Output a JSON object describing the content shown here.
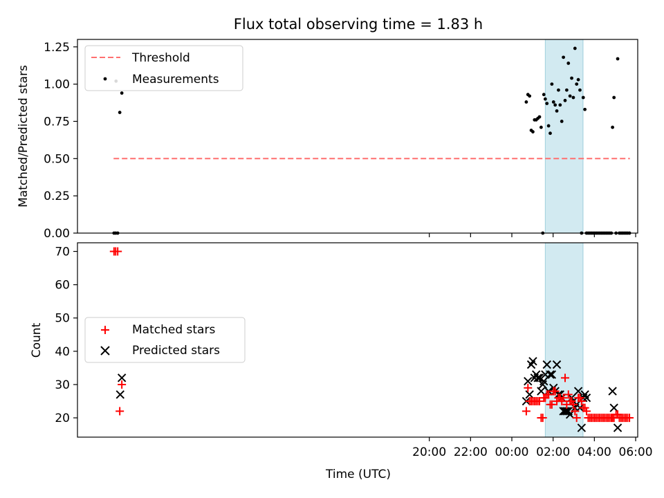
{
  "chart_data": {
    "title": "Flux total observing time = 1.83 h",
    "xlabel": "Time (UTC)",
    "x_unit": "hours_utc_relative_to_00:00",
    "xlim": [
      -21.05,
      6.1
    ],
    "xticks": [
      {
        "value": -4,
        "label": "20:00"
      },
      {
        "value": -2,
        "label": "22:00"
      },
      {
        "value": 0,
        "label": "00:00"
      },
      {
        "value": 2,
        "label": "02:00"
      },
      {
        "value": 4,
        "label": "04:00"
      },
      {
        "value": 6,
        "label": "06:00"
      }
    ],
    "shaded_interval": {
      "x0": 1.62,
      "x1": 3.45,
      "color": "#add8e6"
    },
    "colors": {
      "threshold": "#ff6f6f",
      "measurements": "#000000",
      "matched": "#ff0000",
      "predicted": "#000000"
    },
    "panels": [
      {
        "type": "scatter",
        "ylabel": "Matched/Predicted stars",
        "ylim": [
          0,
          1.3
        ],
        "yticks": [
          {
            "value": 0.0,
            "label": "0.00"
          },
          {
            "value": 0.25,
            "label": "0.25"
          },
          {
            "value": 0.5,
            "label": "0.50"
          },
          {
            "value": 0.75,
            "label": "0.75"
          },
          {
            "value": 1.0,
            "label": "1.00"
          },
          {
            "value": 1.25,
            "label": "1.25"
          }
        ],
        "legend": {
          "placement": "upper-left",
          "entries": [
            "Threshold",
            "Measurements"
          ]
        },
        "threshold": {
          "name": "Threshold",
          "value": 0.5,
          "x": [
            -19.3,
            5.72
          ]
        },
        "measurements": {
          "name": "Measurements",
          "x": [
            -19.28,
            -19.2,
            -19.1,
            -19.18,
            -19.0,
            -18.9,
            0.7,
            0.78,
            0.86,
            0.94,
            1.02,
            1.1,
            1.18,
            1.26,
            1.34,
            1.42,
            1.5,
            1.55,
            1.62,
            1.7,
            1.78,
            1.86,
            1.94,
            2.02,
            2.1,
            2.18,
            2.26,
            2.34,
            2.42,
            2.5,
            2.58,
            2.66,
            2.74,
            2.82,
            2.9,
            2.98,
            3.06,
            3.14,
            3.22,
            3.3,
            3.38,
            3.46,
            3.54,
            3.62,
            3.7,
            3.78,
            3.86,
            3.94,
            4.02,
            4.1,
            4.18,
            4.26,
            4.34,
            4.42,
            4.5,
            4.58,
            4.66,
            4.74,
            4.82,
            4.88,
            4.95,
            5.05,
            5.13,
            5.21,
            5.29,
            5.37,
            5.45,
            5.53,
            5.61,
            5.7
          ],
          "y": [
            0,
            0,
            0,
            1.02,
            0.81,
            0.94,
            0.88,
            0.93,
            0.92,
            0.69,
            0.68,
            0.76,
            0.76,
            0.77,
            0.78,
            0.71,
            0,
            0.93,
            0.9,
            0.87,
            0.72,
            0.67,
            1.0,
            0.88,
            0.86,
            0.82,
            0.96,
            0.86,
            0.75,
            1.18,
            0.89,
            0.96,
            1.14,
            0.92,
            1.04,
            0.91,
            1.24,
            1.0,
            1.03,
            0.96,
            0,
            0.91,
            0.83,
            0,
            0,
            0,
            0,
            0,
            0,
            0,
            0,
            0,
            0,
            0,
            0,
            0,
            0,
            0,
            0,
            0.71,
            0.91,
            0,
            1.17,
            0,
            0,
            0,
            0,
            0,
            0,
            0
          ]
        }
      },
      {
        "type": "scatter",
        "ylabel": "Count",
        "ylim": [
          14.2,
          72.6
        ],
        "yticks": [
          {
            "value": 20,
            "label": "20"
          },
          {
            "value": 30,
            "label": "30"
          },
          {
            "value": 40,
            "label": "40"
          },
          {
            "value": 50,
            "label": "50"
          },
          {
            "value": 60,
            "label": "60"
          },
          {
            "value": 70,
            "label": "70"
          }
        ],
        "legend": {
          "placement": "center-left",
          "entries": [
            "Matched stars",
            "Predicted stars"
          ]
        },
        "series": [
          {
            "name": "Matched stars",
            "marker": "plus",
            "x": [
              -19.28,
              -19.2,
              -19.1,
              -19.0,
              -18.9,
              0.7,
              0.78,
              0.86,
              0.94,
              1.02,
              1.1,
              1.18,
              1.26,
              1.34,
              1.42,
              1.5,
              1.55,
              1.62,
              1.7,
              1.78,
              1.86,
              1.94,
              2.02,
              2.1,
              2.18,
              2.26,
              2.34,
              2.42,
              2.5,
              2.58,
              2.66,
              2.74,
              2.82,
              2.9,
              2.98,
              3.06,
              3.14,
              3.22,
              3.3,
              3.38,
              3.46,
              3.54,
              3.62,
              3.7,
              3.78,
              3.86,
              3.94,
              4.02,
              4.1,
              4.18,
              4.26,
              4.34,
              4.42,
              4.5,
              4.58,
              4.66,
              4.74,
              4.82,
              4.88,
              4.95,
              5.05,
              5.13,
              5.21,
              5.29,
              5.37,
              5.45,
              5.53,
              5.61,
              5.7
            ],
            "y": [
              70,
              70,
              70,
              22,
              30,
              22,
              29,
              25,
              25,
              25,
              25,
              25,
              25,
              25,
              20,
              20,
              26,
              26,
              27,
              27,
              24,
              24,
              28,
              28,
              25,
              26,
              26,
              25,
              26,
              32,
              24,
              27,
              25,
              25,
              24,
              22,
              20,
              26,
              26,
              25,
              23,
              23,
              22,
              20,
              20,
              20,
              20,
              20,
              20,
              20,
              20,
              20,
              20,
              20,
              20,
              20,
              20,
              20,
              20,
              20,
              21,
              21,
              20,
              20,
              20,
              20,
              20,
              20,
              20
            ]
          },
          {
            "name": "Predicted stars",
            "marker": "x",
            "x": [
              -18.98,
              -18.9,
              0.7,
              0.78,
              0.86,
              0.94,
              1.02,
              1.1,
              1.18,
              1.26,
              1.34,
              1.42,
              1.5,
              1.55,
              1.62,
              1.7,
              1.78,
              1.86,
              1.94,
              2.02,
              2.1,
              2.18,
              2.26,
              2.34,
              2.42,
              2.5,
              2.58,
              2.66,
              2.74,
              2.82,
              2.9,
              2.98,
              3.06,
              3.14,
              3.22,
              3.3,
              3.38,
              3.46,
              3.54,
              3.62,
              4.88,
              4.95,
              5.13
            ],
            "y": [
              27,
              32,
              25,
              31,
              27,
              36,
              37,
              32,
              33,
              32,
              32,
              28,
              30,
              31,
              33,
              36,
              28,
              33,
              33,
              29,
              28,
              36,
              27,
              27,
              26,
              22,
              22,
              22,
              22,
              21,
              26,
              25,
              23,
              24,
              28,
              23,
              17,
              26,
              27,
              26,
              28,
              23,
              17
            ]
          }
        ]
      }
    ]
  }
}
